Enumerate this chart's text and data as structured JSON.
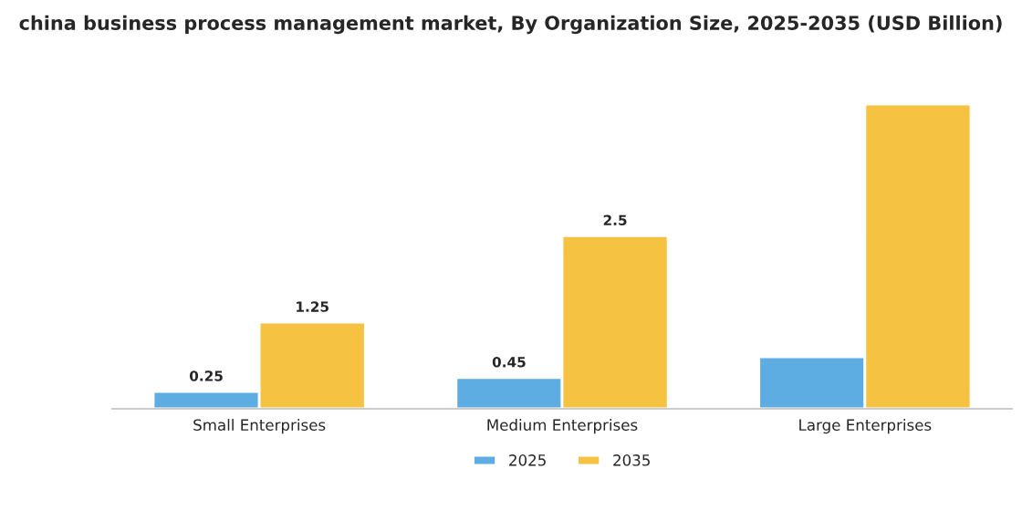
{
  "chart_data": {
    "type": "bar",
    "title": "china business process management market, By Organization Size, 2025-2035 (USD Billion)",
    "categories": [
      "Small Enterprises",
      "Medium Enterprises",
      "Large Enterprises"
    ],
    "series": [
      {
        "name": "2025",
        "color": "#5dade2",
        "values": [
          0.25,
          0.45,
          0.75
        ],
        "value_labels": [
          "0.25",
          "0.45",
          null
        ]
      },
      {
        "name": "2035",
        "color": "#f5c242",
        "values": [
          1.25,
          2.5,
          4.4
        ],
        "value_labels": [
          "1.25",
          "2.5",
          null
        ]
      }
    ],
    "legend": "bottom",
    "grid": false
  }
}
